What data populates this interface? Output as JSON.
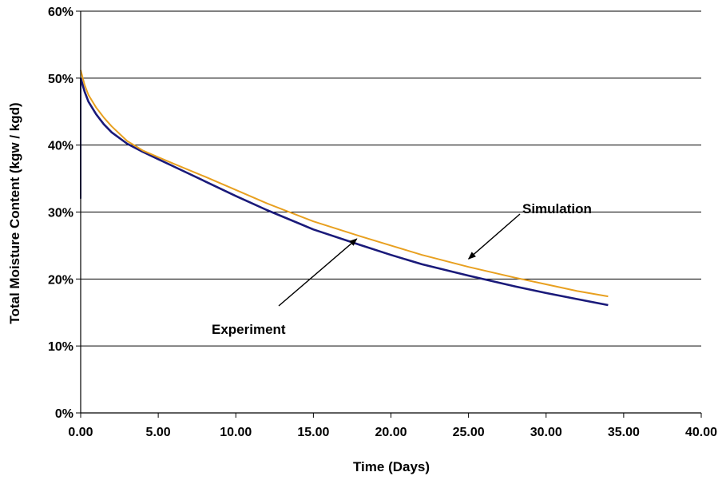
{
  "chart_data": {
    "type": "line",
    "title": "",
    "xlabel": "Time (Days)",
    "ylabel": "Total Moisture Content (kgw / kgd)",
    "xlim": [
      0,
      40
    ],
    "ylim": [
      0,
      0.6
    ],
    "x_ticks": [
      "0.00",
      "5.00",
      "10.00",
      "15.00",
      "20.00",
      "25.00",
      "30.00",
      "35.00",
      "40.00"
    ],
    "y_ticks": [
      "0%",
      "10%",
      "20%",
      "30%",
      "40%",
      "50%",
      "60%"
    ],
    "grid": "horizontal",
    "legend": "none",
    "series": [
      {
        "name": "Experiment",
        "color": "#1a1a7a",
        "x": [
          0,
          0.25,
          0.5,
          1,
          1.5,
          2,
          3,
          4,
          5,
          6,
          8,
          10,
          12,
          15,
          18,
          20,
          22,
          25,
          28,
          30,
          32,
          34
        ],
        "y": [
          0.5,
          0.48,
          0.465,
          0.446,
          0.431,
          0.419,
          0.402,
          0.39,
          0.379,
          0.368,
          0.346,
          0.324,
          0.303,
          0.274,
          0.251,
          0.236,
          0.222,
          0.205,
          0.189,
          0.179,
          0.17,
          0.161
        ]
      },
      {
        "name": "Simulation",
        "color": "#e8a020",
        "x": [
          0,
          0.25,
          0.5,
          1,
          1.5,
          2,
          3,
          4,
          5,
          6,
          8,
          10,
          12,
          15,
          18,
          20,
          22,
          25,
          28,
          30,
          32,
          34
        ],
        "y": [
          0.512,
          0.49,
          0.475,
          0.456,
          0.441,
          0.428,
          0.406,
          0.392,
          0.382,
          0.372,
          0.353,
          0.333,
          0.313,
          0.286,
          0.264,
          0.25,
          0.236,
          0.218,
          0.202,
          0.192,
          0.182,
          0.174
        ]
      }
    ],
    "annotations": [
      {
        "text": "Simulation",
        "target_series": "Simulation",
        "target_x": 25,
        "target_y": 0.23
      },
      {
        "text": "Experiment",
        "target_series": "Experiment",
        "target_x": 17.8,
        "target_y": 0.26
      }
    ]
  }
}
